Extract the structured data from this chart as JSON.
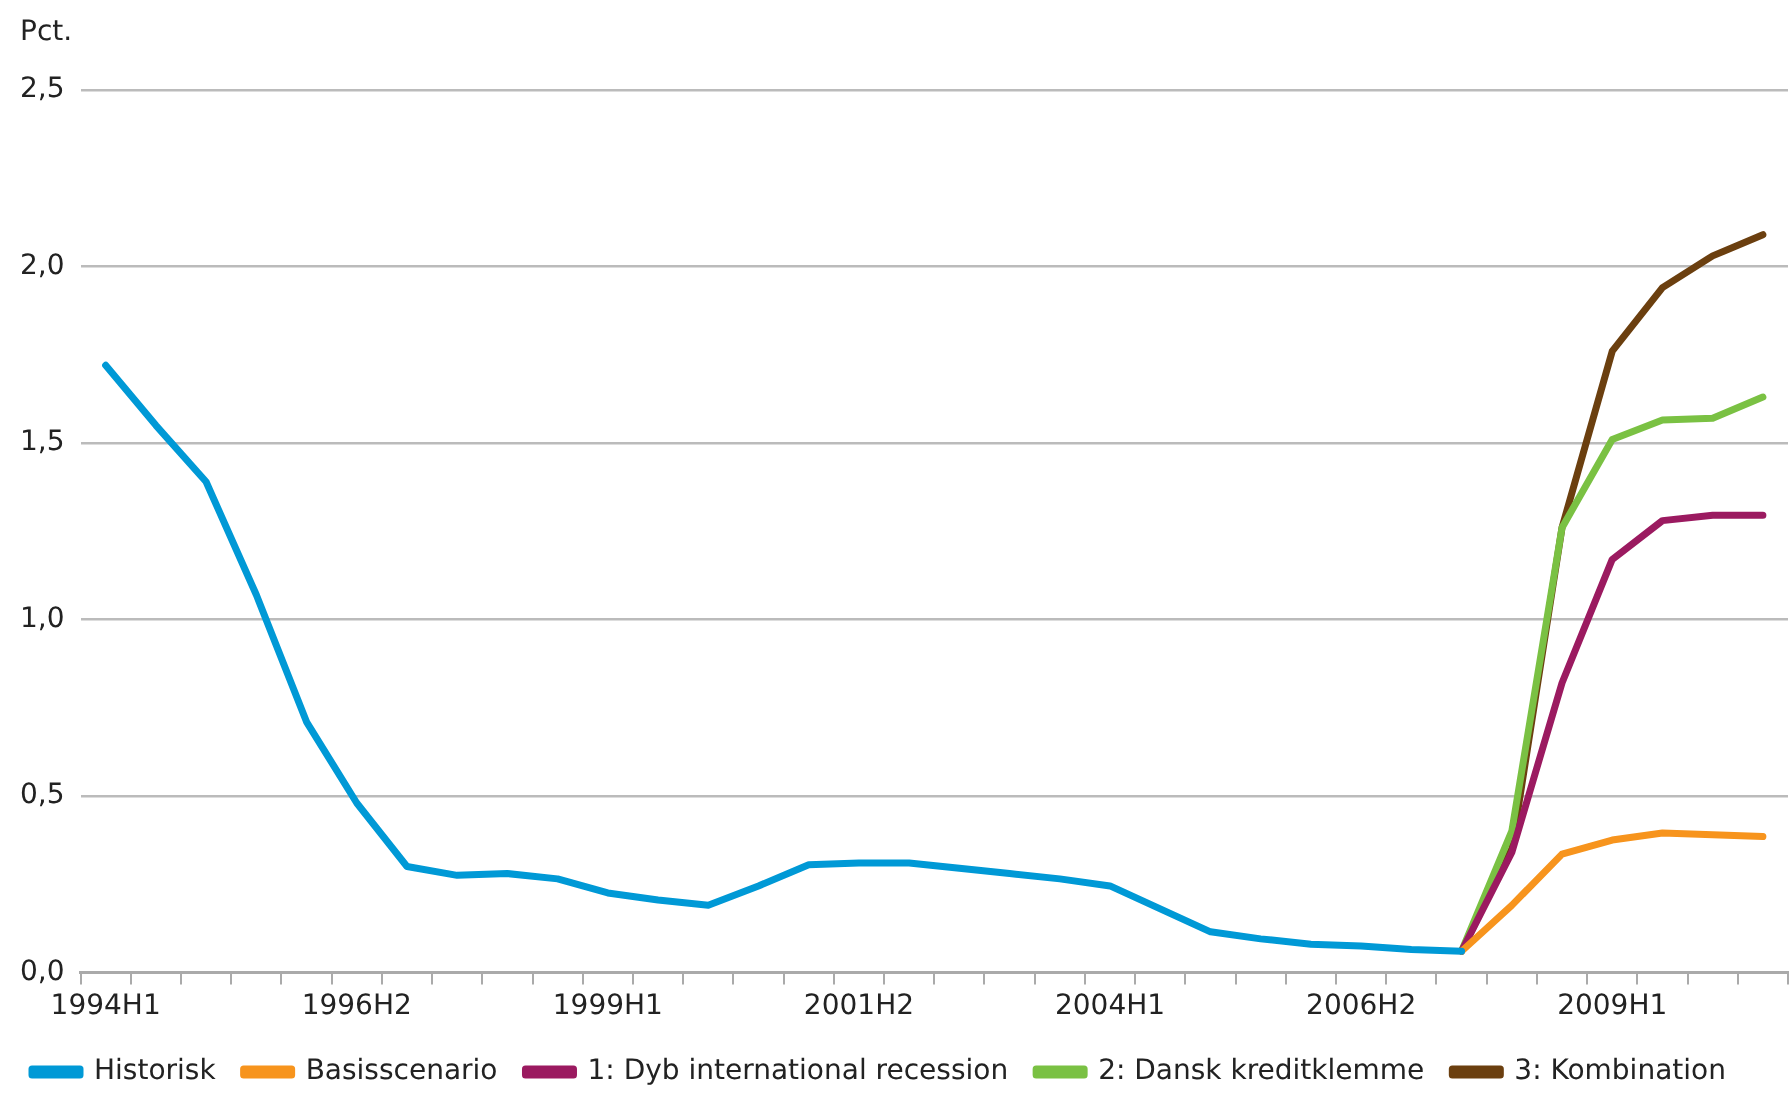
{
  "chart_data": {
    "type": "line",
    "ylabel": "Pct.",
    "categories": [
      "1994H1",
      null,
      null,
      null,
      null,
      "1996H2",
      null,
      null,
      null,
      null,
      "1999H1",
      null,
      null,
      null,
      null,
      "2001H2",
      null,
      null,
      null,
      null,
      "2004H1",
      null,
      null,
      null,
      null,
      "2006H2",
      null,
      null,
      null,
      null,
      "2009H1",
      null,
      null,
      null
    ],
    "series": [
      {
        "name": "Historisk",
        "color": "#0099d6",
        "values": [
          1.72,
          1.55,
          1.39,
          1.07,
          0.71,
          0.48,
          0.3,
          0.275,
          0.28,
          0.265,
          0.225,
          0.205,
          0.19,
          0.245,
          0.305,
          0.31,
          0.31,
          0.295,
          0.28,
          0.265,
          0.245,
          0.18,
          0.115,
          0.095,
          0.08,
          0.075,
          0.065,
          0.06,
          null,
          null,
          null,
          null,
          null,
          null
        ]
      },
      {
        "name": "Basisscenario",
        "color": "#f7941d",
        "values": [
          null,
          null,
          null,
          null,
          null,
          null,
          null,
          null,
          null,
          null,
          null,
          null,
          null,
          null,
          null,
          null,
          null,
          null,
          null,
          null,
          null,
          null,
          null,
          null,
          null,
          null,
          null,
          0.06,
          0.19,
          0.335,
          0.375,
          0.395,
          0.39,
          0.385
        ]
      },
      {
        "name": "1: Dyb international recession",
        "color": "#9b1a60",
        "values": [
          null,
          null,
          null,
          null,
          null,
          null,
          null,
          null,
          null,
          null,
          null,
          null,
          null,
          null,
          null,
          null,
          null,
          null,
          null,
          null,
          null,
          null,
          null,
          null,
          null,
          null,
          null,
          0.06,
          0.34,
          0.82,
          1.17,
          1.28,
          1.295,
          1.295
        ]
      },
      {
        "name": "2: Dansk kreditklemme",
        "color": "#7ac143",
        "values": [
          null,
          null,
          null,
          null,
          null,
          null,
          null,
          null,
          null,
          null,
          null,
          null,
          null,
          null,
          null,
          null,
          null,
          null,
          null,
          null,
          null,
          null,
          null,
          null,
          null,
          null,
          null,
          0.06,
          0.4,
          1.26,
          1.51,
          1.565,
          1.57,
          1.63
        ]
      },
      {
        "name": "3: Kombination",
        "color": "#6b3f0f",
        "values": [
          null,
          null,
          null,
          null,
          null,
          null,
          null,
          null,
          null,
          null,
          null,
          null,
          null,
          null,
          null,
          null,
          null,
          null,
          null,
          null,
          null,
          null,
          null,
          null,
          null,
          null,
          null,
          0.06,
          0.35,
          1.26,
          1.76,
          1.94,
          2.03,
          2.09
        ]
      }
    ],
    "ylim": [
      0,
      2.5
    ],
    "yticks": [
      {
        "value": 0,
        "label": "0,0"
      },
      {
        "value": 0.5,
        "label": "0,5"
      },
      {
        "value": 1,
        "label": "1,0"
      },
      {
        "value": 1.5,
        "label": "1,5"
      },
      {
        "value": 2,
        "label": "2,0"
      },
      {
        "value": 2.5,
        "label": "2,5"
      }
    ],
    "grid": "y",
    "legend": "bottom",
    "marker": "none",
    "line_style": "solid"
  }
}
